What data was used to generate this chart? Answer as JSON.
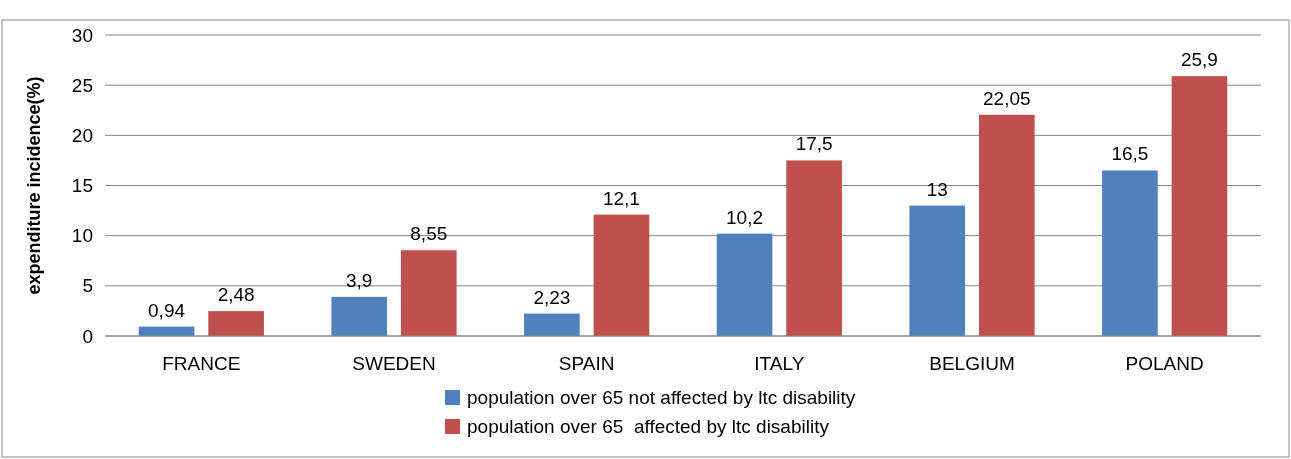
{
  "chart_data": {
    "type": "bar",
    "ylabel": "expenditure incidence(%)",
    "categories": [
      "FRANCE",
      "SWEDEN",
      "SPAIN",
      "ITALY",
      "BELGIUM",
      "POLAND"
    ],
    "series": [
      {
        "name": "population over 65 not affected by ltc disability",
        "color": "#4f81bd",
        "values": [
          0.94,
          3.9,
          2.23,
          10.2,
          13,
          16.5
        ],
        "value_labels": [
          "0,94",
          "3,9",
          "2,23",
          "10,2",
          "13",
          "16,5"
        ]
      },
      {
        "name": "population over 65  affected by ltc disability",
        "color": "#c0504d",
        "values": [
          2.48,
          8.55,
          12.1,
          17.5,
          22.05,
          25.9
        ],
        "value_labels": [
          "2,48",
          "8,55",
          "12,1",
          "17,5",
          "22,05",
          "25,9"
        ]
      }
    ],
    "ylim": [
      0,
      30
    ],
    "yticks": [
      0,
      5,
      10,
      15,
      20,
      25,
      30
    ],
    "grid": "y",
    "legend": "bottom"
  }
}
